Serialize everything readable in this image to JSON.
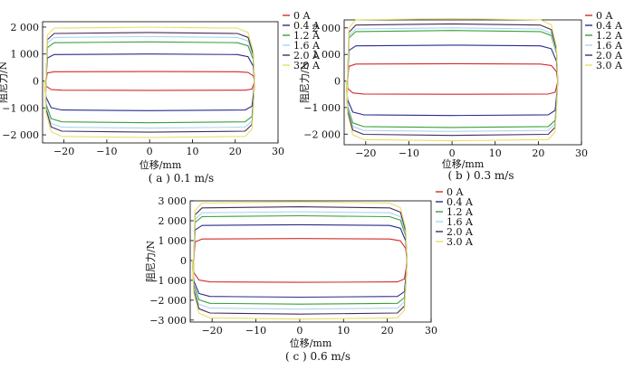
{
  "figure": {
    "legend_title_prefix": "",
    "curve_colors": [
      "#d42a2a",
      "#2a2a8f",
      "#3aa03a",
      "#a7d7ef",
      "#4a2a5a",
      "#e6df6a"
    ]
  },
  "chart_data": [
    {
      "type": "line",
      "caption": "( a ) 0.1 m/s",
      "xlabel": "位移/mm",
      "ylabel": "阻尼力/N",
      "xlim": [
        -25,
        30
      ],
      "ylim": [
        -2300,
        2200
      ],
      "xticks": [
        -20,
        -10,
        0,
        10,
        20,
        30
      ],
      "xtick_labels": [
        "−20",
        "−10",
        "0",
        "10",
        "20",
        "30"
      ],
      "yticks": [
        2000,
        1000,
        0,
        -1000,
        -2000
      ],
      "ytick_labels": [
        "2 000",
        "1 000",
        "0",
        "−1 000",
        "−2 000"
      ],
      "legend": "top-right",
      "x_range": [
        -24.5,
        24.5
      ],
      "series": [
        {
          "name": "0 A",
          "color": "#d42a2a",
          "upper": 350,
          "lower": -350
        },
        {
          "name": "0.4 A",
          "color": "#2a2a8f",
          "upper": 1000,
          "lower": -1100
        },
        {
          "name": "1.2 A",
          "color": "#3aa03a",
          "upper": 1450,
          "lower": -1550
        },
        {
          "name": "1.6 A",
          "color": "#a7d7ef",
          "upper": 1650,
          "lower": -1750
        },
        {
          "name": "2.0 A",
          "color": "#4a2a5a",
          "upper": 1800,
          "lower": -1900
        },
        {
          "name": "3.0 A",
          "color": "#e6df6a",
          "upper": 2000,
          "lower": -2100
        }
      ]
    },
    {
      "type": "line",
      "caption": "( b ) 0.3 m/s",
      "xlabel": "位移/mm",
      "ylabel": "阻尼力/N",
      "xlim": [
        -25,
        30
      ],
      "ylim": [
        -2400,
        2300
      ],
      "xticks": [
        -20,
        -10,
        0,
        10,
        20,
        30
      ],
      "xtick_labels": [
        "−20",
        "−10",
        "0",
        "10",
        "20",
        "30"
      ],
      "yticks": [
        2000,
        1000,
        0,
        -1000,
        -2000
      ],
      "ytick_labels": [
        "2 000",
        "1 000",
        "0",
        "−1 000",
        "−2 000"
      ],
      "legend": "top-right",
      "x_range": [
        -24.5,
        24.5
      ],
      "series": [
        {
          "name": "0 A",
          "color": "#d42a2a",
          "upper": 650,
          "lower": -500
        },
        {
          "name": "0.4 A",
          "color": "#2a2a8f",
          "upper": 1350,
          "lower": -1300
        },
        {
          "name": "1.2 A",
          "color": "#3aa03a",
          "upper": 1900,
          "lower": -1750
        },
        {
          "name": "1.6 A",
          "color": "#a7d7ef",
          "upper": 2000,
          "lower": -1900
        },
        {
          "name": "2.0 A",
          "color": "#4a2a5a",
          "upper": 2150,
          "lower": -2050
        },
        {
          "name": "3.0 A",
          "color": "#e6df6a",
          "upper": 2350,
          "lower": -2250
        }
      ]
    },
    {
      "type": "line",
      "caption": "( c ) 0.6 m/s",
      "xlabel": "位移/mm",
      "ylabel": "阻尼力/N",
      "xlim": [
        -25,
        30
      ],
      "ylim": [
        -3100,
        3000
      ],
      "xticks": [
        -20,
        -10,
        0,
        10,
        20,
        30
      ],
      "xtick_labels": [
        "−20",
        "−10",
        "0",
        "10",
        "20",
        "30"
      ],
      "yticks": [
        3000,
        2000,
        1000,
        0,
        -1000,
        -2000,
        -3000
      ],
      "ytick_labels": [
        "3 000",
        "2 000",
        "1 000",
        "0",
        "−1 000",
        "−2 000",
        "−3 000"
      ],
      "legend": "top-right",
      "x_range": [
        -24.5,
        24.5
      ],
      "series": [
        {
          "name": "0 A",
          "color": "#d42a2a",
          "upper": 1100,
          "lower": -1100
        },
        {
          "name": "0.4 A",
          "color": "#2a2a8f",
          "upper": 1800,
          "lower": -1850
        },
        {
          "name": "1.2 A",
          "color": "#3aa03a",
          "upper": 2250,
          "lower": -2200
        },
        {
          "name": "1.6 A",
          "color": "#a7d7ef",
          "upper": 2450,
          "lower": -2450
        },
        {
          "name": "2.0 A",
          "color": "#4a2a5a",
          "upper": 2700,
          "lower": -2700
        },
        {
          "name": "3.0 A",
          "color": "#e6df6a",
          "upper": 2950,
          "lower": -2950
        }
      ]
    }
  ]
}
